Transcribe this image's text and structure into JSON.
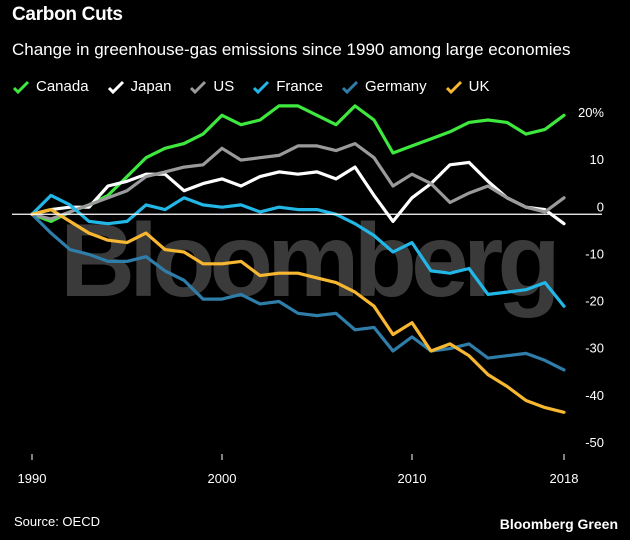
{
  "title": "Carbon Cuts",
  "subtitle": "Change in greenhouse-gas emissions since 1990 among large economies",
  "source": "Source: OECD",
  "brand": "Bloomberg Green",
  "watermark": "Bloomberg",
  "chart_data": {
    "type": "line",
    "title": "Carbon Cuts",
    "subtitle": "Change in greenhouse-gas emissions since 1990 among large economies",
    "x": [
      1990,
      1991,
      1992,
      1993,
      1994,
      1995,
      1996,
      1997,
      1998,
      1999,
      2000,
      2001,
      2002,
      2003,
      2004,
      2005,
      2006,
      2007,
      2008,
      2009,
      2010,
      2011,
      2012,
      2013,
      2014,
      2015,
      2016,
      2017,
      2018
    ],
    "xticks": [
      1990,
      2000,
      2010,
      2018
    ],
    "xlim": [
      1990,
      2018
    ],
    "ylim": [
      -50,
      20
    ],
    "yticks": [
      20,
      10,
      0,
      -10,
      -20,
      -30,
      -40,
      -50
    ],
    "ytick_labels": [
      "20%",
      "10",
      "0",
      "-10",
      "-20",
      "-30",
      "-40",
      "-50"
    ],
    "grid": false,
    "legend_position": "top-left",
    "series": [
      {
        "name": "Canada",
        "color": "#3ee83e",
        "values": [
          0,
          -1.5,
          0.5,
          2,
          4,
          8,
          12,
          14,
          15,
          17,
          21,
          19,
          20,
          23,
          23,
          21,
          19,
          23,
          20,
          13,
          14.5,
          16,
          17.5,
          19.5,
          20,
          19.5,
          17,
          18,
          21
        ]
      },
      {
        "name": "Japan",
        "color": "#ffffff",
        "values": [
          0,
          1,
          1.5,
          1.5,
          6,
          7,
          8.5,
          8.5,
          5,
          6.5,
          7.5,
          6,
          8,
          9,
          8.5,
          9,
          7.5,
          10,
          4,
          -1.5,
          3.5,
          6.5,
          10.5,
          11,
          7,
          3.5,
          1.5,
          1,
          -2
        ]
      },
      {
        "name": "US",
        "color": "#9a9a9a",
        "values": [
          0,
          -1,
          0.5,
          2,
          3.5,
          5,
          8,
          9,
          10,
          10.5,
          14,
          11.5,
          12,
          12.5,
          14.5,
          14.5,
          13.5,
          15,
          12,
          6,
          8.5,
          6.5,
          2.5,
          4.5,
          6,
          3.5,
          1.5,
          0.5,
          3.5
        ]
      },
      {
        "name": "France",
        "color": "#22b7e6",
        "values": [
          0,
          4,
          2,
          -1.5,
          -2,
          -1.5,
          2,
          1,
          3.5,
          2,
          1.5,
          2,
          0.5,
          1.5,
          1,
          1,
          0,
          -2,
          -4.5,
          -8,
          -6,
          -12,
          -12.5,
          -11.5,
          -17,
          -16.5,
          -16,
          -14.5,
          -19.5
        ]
      },
      {
        "name": "Germany",
        "color": "#2f7ea9",
        "values": [
          0,
          -4,
          -7.5,
          -8.5,
          -10,
          -10,
          -9,
          -12,
          -14,
          -18,
          -18,
          -17,
          -19,
          -18.5,
          -21,
          -21.5,
          -21,
          -24.5,
          -24,
          -29,
          -26,
          -29,
          -28.5,
          -27.5,
          -30.5,
          -30,
          -29.5,
          -31,
          -33
        ]
      },
      {
        "name": "UK",
        "color": "#f7b731",
        "values": [
          0,
          1,
          -1.5,
          -4,
          -5.5,
          -6,
          -4,
          -7.5,
          -8,
          -10.5,
          -10.5,
          -10,
          -13,
          -12.5,
          -12.5,
          -13.5,
          -14.5,
          -16.5,
          -19.5,
          -25.5,
          -23,
          -29,
          -27.5,
          -30,
          -34,
          -36.5,
          -39.5,
          -41,
          -42
        ]
      }
    ]
  }
}
